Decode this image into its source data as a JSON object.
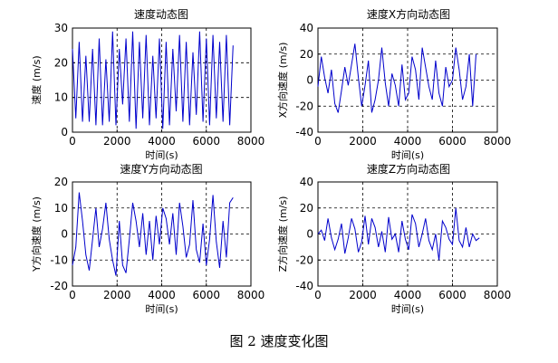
{
  "caption": "图 2  速度变化图",
  "chart_data": [
    {
      "type": "line",
      "title": "速度动态图",
      "xlabel": "",
      "ylabel": "速度 (m/s)",
      "xlim": [
        0,
        8000
      ],
      "ylim": [
        0,
        30
      ],
      "xticks": [
        0,
        2000,
        4000,
        6000,
        8000
      ],
      "yticks": [
        0,
        10,
        20,
        30
      ],
      "grid": true,
      "color": "#0000cc",
      "series": [
        {
          "x": [
            0,
            150,
            300,
            450,
            600,
            750,
            900,
            1050,
            1200,
            1350,
            1500,
            1650,
            1800,
            1950,
            2100,
            2250,
            2400,
            2550,
            2700,
            2850,
            3000,
            3150,
            3300,
            3450,
            3600,
            3750,
            3900,
            4050,
            4200,
            4350,
            4500,
            4650,
            4800,
            4950,
            5100,
            5250,
            5400,
            5550,
            5700,
            5850,
            6000,
            6150,
            6300,
            6450,
            6600,
            6750,
            6900,
            7050,
            7200
          ],
          "y": [
            24,
            4,
            26,
            3,
            22,
            3,
            24,
            2,
            27,
            2,
            21,
            3,
            29,
            2,
            24,
            8,
            27,
            3,
            29,
            1,
            26,
            4,
            28,
            2,
            22,
            4,
            27,
            1,
            26,
            2,
            24,
            6,
            28,
            3,
            26,
            2,
            23,
            5,
            29,
            3,
            27,
            2,
            28,
            4,
            26,
            3,
            28,
            2,
            25
          ]
        }
      ]
    },
    {
      "type": "line",
      "title": "速度X方向动态图",
      "xlabel": "",
      "ylabel": "X方向速度 (m/s)",
      "xlim": [
        0,
        8000
      ],
      "ylim": [
        -40,
        40
      ],
      "xticks": [
        0,
        2000,
        4000,
        6000,
        8000
      ],
      "yticks": [
        -40,
        -20,
        0,
        20,
        40
      ],
      "grid": true,
      "color": "#0000cc",
      "series": [
        {
          "x": [
            0,
            150,
            300,
            450,
            600,
            750,
            900,
            1050,
            1200,
            1350,
            1500,
            1650,
            1800,
            1950,
            2100,
            2250,
            2400,
            2550,
            2700,
            2850,
            3000,
            3150,
            3300,
            3450,
            3600,
            3750,
            3900,
            4050,
            4200,
            4350,
            4500,
            4650,
            4800,
            4950,
            5100,
            5250,
            5400,
            5550,
            5700,
            5850,
            6000,
            6150,
            6300,
            6450,
            6600,
            6750,
            6900,
            7050
          ],
          "y": [
            -5,
            18,
            2,
            -10,
            8,
            -18,
            -25,
            -8,
            10,
            -4,
            12,
            28,
            2,
            -20,
            -4,
            15,
            -25,
            -15,
            0,
            25,
            -2,
            -20,
            5,
            -4,
            -20,
            12,
            -15,
            -10,
            18,
            8,
            -15,
            25,
            10,
            -5,
            -15,
            15,
            -10,
            -20,
            10,
            -5,
            0,
            25,
            8,
            -15,
            -5,
            20,
            -20,
            20
          ]
        }
      ]
    },
    {
      "type": "line",
      "title": "速度Y方向动态图",
      "xlabel": "",
      "ylabel": "Y方向速度 (m/s)",
      "xlim": [
        0,
        8000
      ],
      "ylim": [
        -20,
        20
      ],
      "xticks": [
        0,
        2000,
        4000,
        6000,
        8000
      ],
      "yticks": [
        -20,
        -10,
        0,
        10,
        20
      ],
      "grid": true,
      "color": "#0000cc",
      "series": [
        {
          "x": [
            0,
            150,
            300,
            450,
            600,
            750,
            900,
            1050,
            1200,
            1350,
            1500,
            1650,
            1800,
            1950,
            2100,
            2250,
            2400,
            2550,
            2700,
            2850,
            3000,
            3150,
            3300,
            3450,
            3600,
            3750,
            3900,
            4050,
            4200,
            4350,
            4500,
            4650,
            4800,
            4950,
            5100,
            5250,
            5400,
            5550,
            5700,
            5850,
            6000,
            6150,
            6300,
            6450,
            6600,
            6750,
            6900,
            7050,
            7200
          ],
          "y": [
            -12,
            -5,
            16,
            5,
            -8,
            -14,
            -2,
            10,
            -5,
            2,
            12,
            -2,
            -10,
            -16,
            5,
            -12,
            -15,
            -2,
            12,
            5,
            -5,
            8,
            -8,
            5,
            -10,
            7,
            -4,
            10,
            6,
            -4,
            8,
            -8,
            12,
            3,
            -9,
            -4,
            13,
            -6,
            -11,
            4,
            -12,
            -2,
            15,
            -3,
            -13,
            5,
            -9,
            12,
            14
          ]
        }
      ]
    },
    {
      "type": "line",
      "title": "速度Z方向动态图",
      "xlabel": "",
      "ylabel": "Z方向速度 (m/s)",
      "xlim": [
        0,
        8000
      ],
      "ylim": [
        -40,
        40
      ],
      "xticks": [
        0,
        2000,
        4000,
        6000,
        8000
      ],
      "yticks": [
        -40,
        -20,
        0,
        20,
        40
      ],
      "grid": true,
      "color": "#0000cc",
      "series": [
        {
          "x": [
            0,
            150,
            300,
            450,
            600,
            750,
            900,
            1050,
            1200,
            1350,
            1500,
            1650,
            1800,
            1950,
            2100,
            2250,
            2400,
            2550,
            2700,
            2850,
            3000,
            3150,
            3300,
            3450,
            3600,
            3750,
            3900,
            4050,
            4200,
            4350,
            4500,
            4650,
            4800,
            4950,
            5100,
            5250,
            5400,
            5550,
            5700,
            5850,
            6000,
            6150,
            6300,
            6450,
            6600,
            6750,
            6900,
            7050,
            7200
          ],
          "y": [
            0,
            3,
            -5,
            12,
            -3,
            -12,
            -4,
            8,
            -15,
            -3,
            12,
            4,
            -14,
            -6,
            14,
            -8,
            12,
            5,
            -10,
            2,
            -14,
            13,
            -4,
            0,
            -14,
            10,
            -4,
            -12,
            15,
            8,
            -10,
            0,
            12,
            -5,
            -12,
            0,
            -20,
            10,
            5,
            -4,
            -8,
            20,
            -5,
            -10,
            5,
            -10,
            0,
            -5,
            -3
          ]
        }
      ]
    }
  ],
  "x_axis_label": "时间(s)"
}
